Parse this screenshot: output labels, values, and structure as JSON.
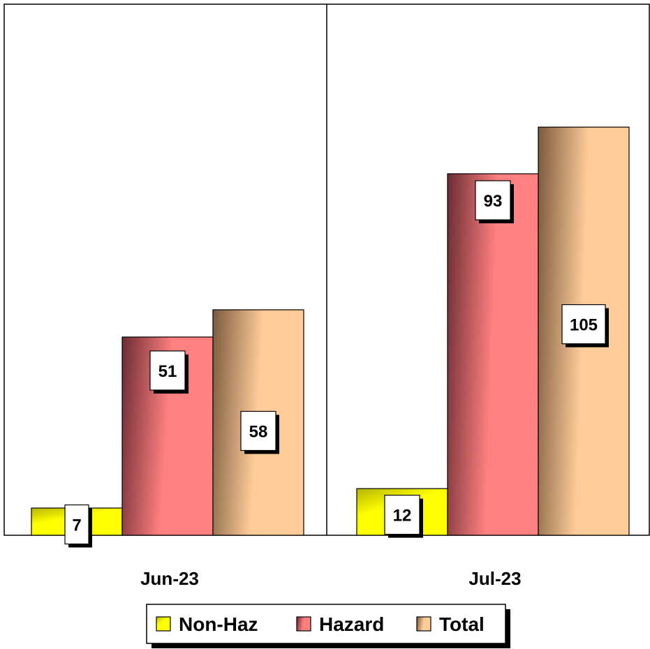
{
  "chart_data": {
    "type": "bar",
    "categories": [
      "Jun-23",
      "Jul-23"
    ],
    "series": [
      {
        "name": "Non-Haz",
        "values": [
          7,
          12
        ],
        "color": "#FFFF00",
        "shade": "#8A8A00"
      },
      {
        "name": "Hazard",
        "values": [
          51,
          93
        ],
        "color": "#FF8080",
        "shade": "#6B2C33"
      },
      {
        "name": "Total",
        "values": [
          58,
          105
        ],
        "color": "#FFCC99",
        "shade": "#7A5A3E"
      }
    ],
    "title": "",
    "xlabel": "",
    "ylabel": "",
    "ylim": [
      0,
      120
    ],
    "grid": false,
    "legend_position": "bottom"
  }
}
